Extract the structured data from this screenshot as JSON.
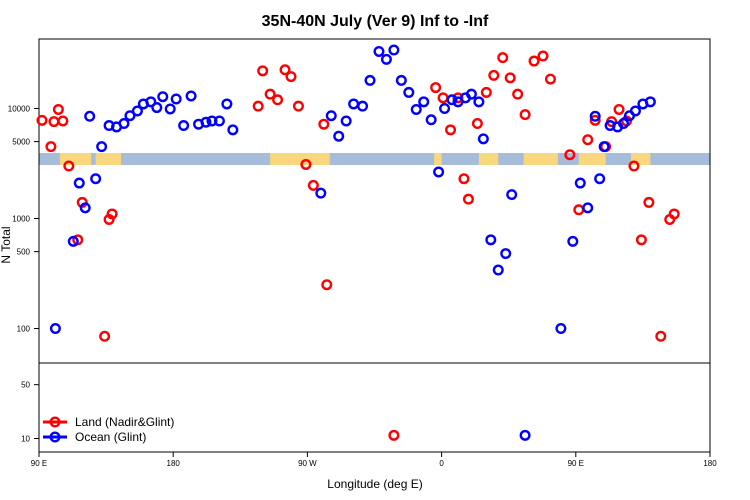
{
  "chart_data": {
    "type": "scatter",
    "title": "35N-40N July (Ver 9)   Inf to -Inf",
    "xlabel": "Longitude (deg E)",
    "ylabel": "N Total",
    "x_scale": "longitude, 90 E to 180 wrapping through 180 (450 deg span)",
    "xlim": [
      90,
      540
    ],
    "x_ticks": [
      {
        "value": 90,
        "label": "90 E"
      },
      {
        "value": 180,
        "label": "180"
      },
      {
        "value": 270,
        "label": "90 W"
      },
      {
        "value": 360,
        "label": "0"
      },
      {
        "value": 450,
        "label": "90 E"
      },
      {
        "value": 540,
        "label": "180"
      }
    ],
    "y_scale": "log (upper panel 50 to ~50000, lower panel 5 to 50)",
    "y_ticks_upper": [
      {
        "value": 100,
        "label": "100"
      },
      {
        "value": 500,
        "label": "500"
      },
      {
        "value": 1000,
        "label": "1000"
      },
      {
        "value": 5000,
        "label": "5000"
      },
      {
        "value": 10000,
        "label": "10000"
      }
    ],
    "y_ticks_lower": [
      {
        "value": 10,
        "label": "10"
      },
      {
        "value": 50,
        "label": "50"
      }
    ],
    "legend": {
      "placement": "bottom-left",
      "entries": [
        "Land (Nadir&Glint)",
        "Ocean (Glint)"
      ]
    },
    "colors": {
      "land": "#ff0000",
      "ocean": "#0000ff",
      "map_land": "#f8d77e",
      "map_ocean": "#a7bcd9"
    },
    "series": [
      {
        "name": "Land (Nadir&Glint)",
        "points": [
          [
            92,
            7800
          ],
          [
            98,
            4500
          ],
          [
            100,
            7600
          ],
          [
            103,
            9800
          ],
          [
            106,
            7700
          ],
          [
            110,
            3000
          ],
          [
            116,
            640
          ],
          [
            119,
            1400
          ],
          [
            134,
            85
          ],
          [
            137,
            980
          ],
          [
            139,
            1100
          ],
          [
            237,
            10500
          ],
          [
            240,
            22000
          ],
          [
            245,
            13500
          ],
          [
            250,
            12000
          ],
          [
            255,
            22500
          ],
          [
            259,
            19500
          ],
          [
            264,
            10500
          ],
          [
            269,
            3100
          ],
          [
            274,
            2000
          ],
          [
            281,
            7200
          ],
          [
            283,
            250
          ],
          [
            328,
            11
          ],
          [
            356,
            15500
          ],
          [
            361,
            12500
          ],
          [
            366,
            6400
          ],
          [
            371,
            12500
          ],
          [
            375,
            2300
          ],
          [
            378,
            1500
          ],
          [
            384,
            7300
          ],
          [
            390,
            14000
          ],
          [
            395,
            20000
          ],
          [
            401,
            29000
          ],
          [
            406,
            19000
          ],
          [
            411,
            13500
          ],
          [
            416,
            8800
          ],
          [
            422,
            27000
          ],
          [
            428,
            30000
          ],
          [
            433,
            18500
          ],
          [
            446,
            3800
          ],
          [
            452,
            1200
          ],
          [
            458,
            5200
          ],
          [
            463,
            7800
          ],
          [
            470,
            4500
          ],
          [
            474,
            7600
          ],
          [
            479,
            9800
          ],
          [
            484,
            7700
          ],
          [
            489,
            3000
          ],
          [
            494,
            640
          ],
          [
            499,
            1400
          ],
          [
            507,
            85
          ],
          [
            513,
            980
          ],
          [
            516,
            1100
          ]
        ]
      },
      {
        "name": "Ocean (Glint)",
        "points": [
          [
            101,
            100
          ],
          [
            113,
            620
          ],
          [
            117,
            2100
          ],
          [
            121,
            1250
          ],
          [
            124,
            8500
          ],
          [
            128,
            2300
          ],
          [
            132,
            4500
          ],
          [
            137,
            7000
          ],
          [
            142,
            6800
          ],
          [
            147,
            7300
          ],
          [
            151,
            8600
          ],
          [
            156,
            9500
          ],
          [
            160,
            11000
          ],
          [
            165,
            11500
          ],
          [
            169,
            10200
          ],
          [
            173,
            12800
          ],
          [
            178,
            9900
          ],
          [
            182,
            12200
          ],
          [
            187,
            7000
          ],
          [
            192,
            13000
          ],
          [
            197,
            7200
          ],
          [
            202,
            7500
          ],
          [
            206,
            7700
          ],
          [
            211,
            7700
          ],
          [
            216,
            11000
          ],
          [
            220,
            6400
          ],
          [
            279,
            1700
          ],
          [
            286,
            8600
          ],
          [
            291,
            5600
          ],
          [
            296,
            7700
          ],
          [
            301,
            11000
          ],
          [
            307,
            10500
          ],
          [
            312,
            18000
          ],
          [
            318,
            33000
          ],
          [
            323,
            28000
          ],
          [
            328,
            34000
          ],
          [
            333,
            18000
          ],
          [
            338,
            14000
          ],
          [
            343,
            9800
          ],
          [
            348,
            11500
          ],
          [
            353,
            7900
          ],
          [
            358,
            2650
          ],
          [
            362,
            10000
          ],
          [
            367,
            12000
          ],
          [
            371,
            11500
          ],
          [
            376,
            12500
          ],
          [
            380,
            13500
          ],
          [
            385,
            11500
          ],
          [
            388,
            5300
          ],
          [
            393,
            640
          ],
          [
            398,
            340
          ],
          [
            403,
            480
          ],
          [
            407,
            1650
          ],
          [
            416,
            11
          ],
          [
            440,
            100
          ],
          [
            448,
            620
          ],
          [
            453,
            2100
          ],
          [
            458,
            1250
          ],
          [
            463,
            8500
          ],
          [
            466,
            2300
          ],
          [
            469,
            4500
          ],
          [
            473,
            7000
          ],
          [
            478,
            6800
          ],
          [
            482,
            7300
          ],
          [
            486,
            8600
          ],
          [
            490,
            9500
          ],
          [
            495,
            11000
          ],
          [
            500,
            11500
          ]
        ]
      }
    ]
  }
}
